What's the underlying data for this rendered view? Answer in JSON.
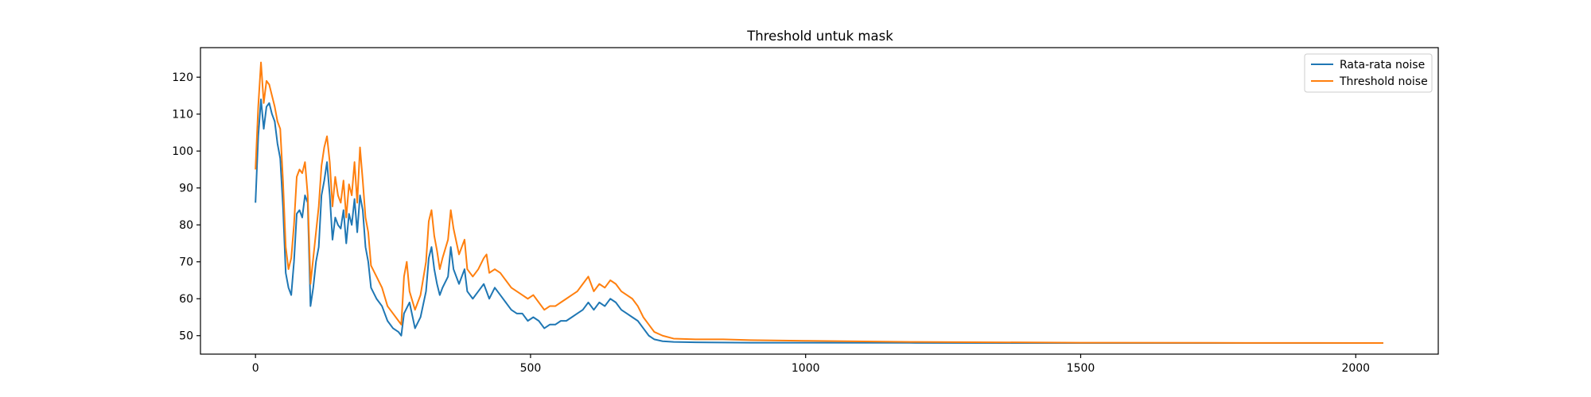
{
  "chart_data": {
    "type": "line",
    "title": "Threshold untuk mask",
    "xlabel": "",
    "ylabel": "",
    "xlim": [
      -100,
      2150
    ],
    "ylim": [
      45,
      128
    ],
    "xticks": [
      0,
      500,
      1000,
      1500,
      2000
    ],
    "yticks": [
      50,
      60,
      70,
      80,
      90,
      100,
      110,
      120
    ],
    "grid": false,
    "legend": "top-right",
    "series": [
      {
        "name": "Rata-rata noise",
        "color": "#1f77b4",
        "points": [
          [
            0,
            86
          ],
          [
            5,
            104
          ],
          [
            10,
            114
          ],
          [
            15,
            106
          ],
          [
            20,
            112
          ],
          [
            25,
            113
          ],
          [
            30,
            110
          ],
          [
            35,
            108
          ],
          [
            40,
            102
          ],
          [
            45,
            98
          ],
          [
            50,
            85
          ],
          [
            55,
            67
          ],
          [
            60,
            63
          ],
          [
            65,
            61
          ],
          [
            70,
            70
          ],
          [
            75,
            83
          ],
          [
            80,
            84
          ],
          [
            85,
            82
          ],
          [
            90,
            88
          ],
          [
            95,
            86
          ],
          [
            100,
            58
          ],
          [
            105,
            63
          ],
          [
            110,
            70
          ],
          [
            115,
            74
          ],
          [
            120,
            88
          ],
          [
            125,
            92
          ],
          [
            130,
            97
          ],
          [
            135,
            88
          ],
          [
            140,
            76
          ],
          [
            145,
            82
          ],
          [
            150,
            80
          ],
          [
            155,
            79
          ],
          [
            160,
            84
          ],
          [
            165,
            75
          ],
          [
            170,
            83
          ],
          [
            175,
            80
          ],
          [
            180,
            87
          ],
          [
            185,
            78
          ],
          [
            190,
            88
          ],
          [
            195,
            84
          ],
          [
            200,
            74
          ],
          [
            205,
            70
          ],
          [
            210,
            63
          ],
          [
            220,
            60
          ],
          [
            230,
            58
          ],
          [
            240,
            54
          ],
          [
            250,
            52
          ],
          [
            260,
            51
          ],
          [
            265,
            50
          ],
          [
            270,
            56
          ],
          [
            280,
            59
          ],
          [
            290,
            52
          ],
          [
            300,
            55
          ],
          [
            310,
            62
          ],
          [
            315,
            71
          ],
          [
            320,
            74
          ],
          [
            325,
            68
          ],
          [
            330,
            64
          ],
          [
            335,
            61
          ],
          [
            340,
            63
          ],
          [
            350,
            66
          ],
          [
            355,
            74
          ],
          [
            360,
            68
          ],
          [
            370,
            64
          ],
          [
            380,
            68
          ],
          [
            385,
            62
          ],
          [
            395,
            60
          ],
          [
            405,
            62
          ],
          [
            415,
            64
          ],
          [
            425,
            60
          ],
          [
            435,
            63
          ],
          [
            445,
            61
          ],
          [
            455,
            59
          ],
          [
            465,
            57
          ],
          [
            475,
            56
          ],
          [
            485,
            56
          ],
          [
            495,
            54
          ],
          [
            505,
            55
          ],
          [
            515,
            54
          ],
          [
            525,
            52
          ],
          [
            535,
            53
          ],
          [
            545,
            53
          ],
          [
            555,
            54
          ],
          [
            565,
            54
          ],
          [
            575,
            55
          ],
          [
            585,
            56
          ],
          [
            595,
            57
          ],
          [
            605,
            59
          ],
          [
            615,
            57
          ],
          [
            625,
            59
          ],
          [
            635,
            58
          ],
          [
            645,
            60
          ],
          [
            655,
            59
          ],
          [
            665,
            57
          ],
          [
            675,
            56
          ],
          [
            685,
            55
          ],
          [
            695,
            54
          ],
          [
            705,
            52
          ],
          [
            715,
            50
          ],
          [
            725,
            49
          ],
          [
            740,
            48.5
          ],
          [
            760,
            48.3
          ],
          [
            800,
            48.2
          ],
          [
            900,
            48.1
          ],
          [
            1000,
            48.1
          ],
          [
            1200,
            48.05
          ],
          [
            1500,
            48
          ],
          [
            1800,
            48
          ],
          [
            2050,
            48
          ]
        ]
      },
      {
        "name": "Threshold noise",
        "color": "#ff7f0e",
        "points": [
          [
            0,
            95
          ],
          [
            5,
            112
          ],
          [
            10,
            124
          ],
          [
            15,
            113
          ],
          [
            20,
            119
          ],
          [
            25,
            118
          ],
          [
            30,
            115
          ],
          [
            35,
            112
          ],
          [
            40,
            108
          ],
          [
            45,
            106
          ],
          [
            50,
            92
          ],
          [
            55,
            74
          ],
          [
            60,
            68
          ],
          [
            65,
            71
          ],
          [
            70,
            80
          ],
          [
            75,
            93
          ],
          [
            80,
            95
          ],
          [
            85,
            94
          ],
          [
            90,
            97
          ],
          [
            95,
            88
          ],
          [
            100,
            64
          ],
          [
            105,
            71
          ],
          [
            110,
            78
          ],
          [
            115,
            85
          ],
          [
            120,
            96
          ],
          [
            125,
            101
          ],
          [
            130,
            104
          ],
          [
            135,
            97
          ],
          [
            140,
            85
          ],
          [
            145,
            93
          ],
          [
            150,
            88
          ],
          [
            155,
            86
          ],
          [
            160,
            92
          ],
          [
            165,
            82
          ],
          [
            170,
            91
          ],
          [
            175,
            88
          ],
          [
            180,
            97
          ],
          [
            185,
            86
          ],
          [
            190,
            101
          ],
          [
            195,
            92
          ],
          [
            200,
            82
          ],
          [
            205,
            78
          ],
          [
            210,
            69
          ],
          [
            220,
            66
          ],
          [
            230,
            63
          ],
          [
            240,
            58
          ],
          [
            250,
            56
          ],
          [
            260,
            54
          ],
          [
            265,
            53
          ],
          [
            270,
            66
          ],
          [
            275,
            70
          ],
          [
            280,
            62
          ],
          [
            290,
            57
          ],
          [
            300,
            61
          ],
          [
            310,
            70
          ],
          [
            315,
            81
          ],
          [
            320,
            84
          ],
          [
            325,
            77
          ],
          [
            330,
            73
          ],
          [
            335,
            68
          ],
          [
            340,
            71
          ],
          [
            350,
            76
          ],
          [
            355,
            84
          ],
          [
            360,
            79
          ],
          [
            370,
            72
          ],
          [
            380,
            76
          ],
          [
            385,
            68
          ],
          [
            395,
            66
          ],
          [
            405,
            68
          ],
          [
            415,
            71
          ],
          [
            420,
            72
          ],
          [
            425,
            67
          ],
          [
            435,
            68
          ],
          [
            445,
            67
          ],
          [
            455,
            65
          ],
          [
            465,
            63
          ],
          [
            475,
            62
          ],
          [
            485,
            61
          ],
          [
            495,
            60
          ],
          [
            505,
            61
          ],
          [
            515,
            59
          ],
          [
            525,
            57
          ],
          [
            535,
            58
          ],
          [
            545,
            58
          ],
          [
            555,
            59
          ],
          [
            565,
            60
          ],
          [
            575,
            61
          ],
          [
            585,
            62
          ],
          [
            595,
            64
          ],
          [
            605,
            66
          ],
          [
            615,
            62
          ],
          [
            625,
            64
          ],
          [
            635,
            63
          ],
          [
            645,
            65
          ],
          [
            655,
            64
          ],
          [
            665,
            62
          ],
          [
            675,
            61
          ],
          [
            685,
            60
          ],
          [
            695,
            58
          ],
          [
            705,
            55
          ],
          [
            715,
            53
          ],
          [
            725,
            51
          ],
          [
            740,
            50
          ],
          [
            760,
            49.2
          ],
          [
            800,
            49
          ],
          [
            850,
            49
          ],
          [
            900,
            48.8
          ],
          [
            1000,
            48.6
          ],
          [
            1200,
            48.3
          ],
          [
            1500,
            48.1
          ],
          [
            1800,
            48.05
          ],
          [
            2050,
            48
          ]
        ]
      }
    ]
  }
}
